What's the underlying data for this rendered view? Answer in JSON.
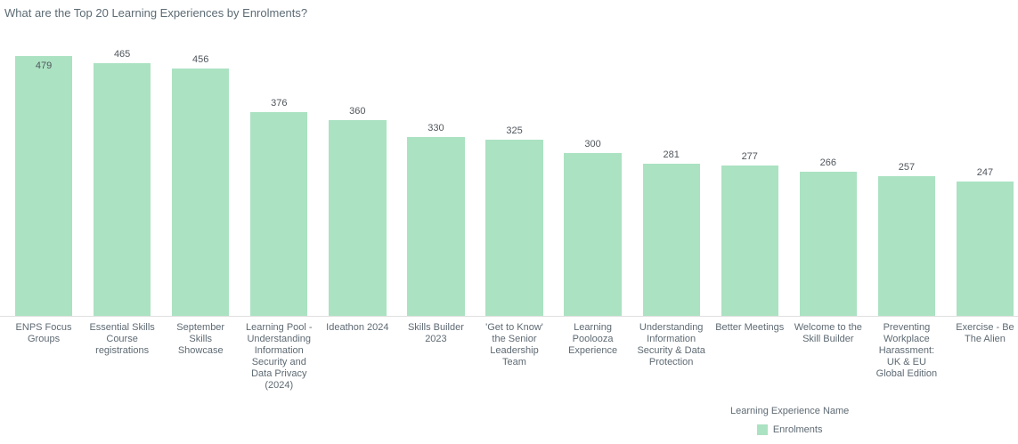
{
  "page": {
    "background": "#ffffff"
  },
  "chart_data": {
    "type": "bar",
    "title": "What are the Top 20 Learning Experiences by Enrolments?",
    "series_name": "Enrolments",
    "legend_title": "Learning Experience Name",
    "legend_position": "bottom-right",
    "categories": [
      "ENPS Focus Groups",
      "Essential Skills Course registrations",
      "September Skills Showcase",
      "Learning Pool - Understanding Information Security and Data Privacy (2024)",
      "Ideathon 2024",
      "Skills Builder 2023",
      "'Get to Know' the Senior Leadership Team",
      "Learning Poolooza Experience",
      "Understanding Information Security & Data Protection",
      "Better Meetings",
      "Welcome to the Skill Builder",
      "Preventing Workplace Harassment: UK & EU Global Edition",
      "Exercise - Be The Alien"
    ],
    "values": [
      479,
      465,
      456,
      376,
      360,
      330,
      325,
      300,
      281,
      277,
      266,
      257,
      247
    ],
    "value_labels_shown": true,
    "bar_color": "#abe2c2",
    "text_color": "#5e6a73",
    "axis_line_color": "#e0e0e0",
    "grid": false,
    "y_axis_visible": false,
    "xlabel": "Learning Experience Name",
    "ylabel": "Enrolments",
    "ylim": [
      0,
      492
    ]
  }
}
